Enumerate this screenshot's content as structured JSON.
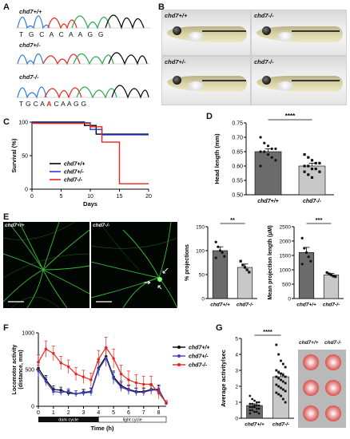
{
  "panels": {
    "A": {
      "letter": "A",
      "genotypes": [
        "chd7+/+",
        "chd7+/-",
        "chd7-/-"
      ],
      "seq_top": [
        "T",
        "G",
        "C",
        "A",
        "C",
        "A",
        "A",
        "G",
        "G"
      ],
      "seq_bottom_pre": "T G C A ",
      "seq_bottom_mut": "A",
      "seq_bottom_post": " C A A G G"
    },
    "B": {
      "letter": "B",
      "labels": [
        "chd7+/+",
        "chd7-/-",
        "chd7+/-",
        "chd7-/-"
      ]
    },
    "C": {
      "letter": "C"
    },
    "D": {
      "letter": "D"
    },
    "E": {
      "letter": "E",
      "image_labels": [
        "chd7+/+",
        "chd7-/-"
      ]
    },
    "F": {
      "letter": "F",
      "dark_label": "dark cycle",
      "light_label": "light cycle"
    },
    "G": {
      "letter": "G",
      "well_labels": [
        "chd7+/+",
        "chd7-/-"
      ]
    }
  },
  "chart_data": [
    {
      "id": "C",
      "type": "line",
      "ylabel": "Survival (%)",
      "xlabel": "Days",
      "xlim": [
        0,
        20
      ],
      "ylim": [
        0,
        100
      ],
      "xticks": [
        "0",
        "5",
        "10",
        "15",
        "20"
      ],
      "yticks": [
        "0",
        "50",
        "100"
      ],
      "series": [
        {
          "name": "chd7+/+",
          "color": "#000000",
          "steps": [
            [
              0,
              100
            ],
            [
              9,
              100
            ],
            [
              9,
              95
            ],
            [
              11,
              95
            ],
            [
              11,
              82
            ],
            [
              20,
              82
            ]
          ]
        },
        {
          "name": "chd7+/-",
          "color": "#1f3fd6",
          "steps": [
            [
              0,
              100
            ],
            [
              10,
              100
            ],
            [
              10,
              90
            ],
            [
              12,
              90
            ],
            [
              12,
              82
            ],
            [
              20,
              82
            ]
          ]
        },
        {
          "name": "chd7-/-",
          "color": "#e8241c",
          "steps": [
            [
              0,
              100
            ],
            [
              10,
              100
            ],
            [
              10,
              95
            ],
            [
              12,
              95
            ],
            [
              12,
              72
            ],
            [
              15,
              72
            ],
            [
              15,
              10
            ],
            [
              20,
              10
            ]
          ]
        }
      ]
    },
    {
      "id": "D",
      "type": "bar",
      "ylabel": "Head length (mm)",
      "categories": [
        "chd7+/+",
        "chd7-/-"
      ],
      "values": [
        0.65,
        0.6
      ],
      "errors": [
        0.01,
        0.01
      ],
      "colors": [
        "#6b6b6b",
        "#c8c8c8"
      ],
      "ylim": [
        0.5,
        0.75
      ],
      "yticks": [
        "0.50",
        "0.55",
        "0.60",
        "0.65",
        "0.70",
        "0.75"
      ],
      "significance": "****",
      "points": [
        [
          0.7,
          0.68,
          0.67,
          0.66,
          0.66,
          0.65,
          0.65,
          0.64,
          0.63,
          0.62,
          0.6
        ],
        [
          0.64,
          0.63,
          0.62,
          0.61,
          0.61,
          0.6,
          0.6,
          0.59,
          0.59,
          0.58,
          0.58,
          0.57,
          0.56
        ]
      ]
    },
    {
      "id": "E1",
      "type": "bar",
      "ylabel": "% projections",
      "categories": [
        "chd7+/+",
        "chd7-/-"
      ],
      "values": [
        100,
        65
      ],
      "errors": [
        8,
        7
      ],
      "colors": [
        "#6b6b6b",
        "#c8c8c8"
      ],
      "ylim": [
        0,
        150
      ],
      "yticks": [
        "0",
        "50",
        "100",
        "150"
      ],
      "significance": "**",
      "points": [
        [
          118,
          108,
          100,
          96,
          88,
          85
        ],
        [
          78,
          70,
          65,
          60,
          55
        ]
      ]
    },
    {
      "id": "E2",
      "type": "bar",
      "ylabel": "Mean projection length (μM)",
      "categories": [
        "chd7+/+",
        "chd7-/-"
      ],
      "values": [
        1600,
        820
      ],
      "errors": [
        180,
        50
      ],
      "colors": [
        "#6b6b6b",
        "#c8c8c8"
      ],
      "ylim": [
        0,
        2500
      ],
      "yticks": [
        "0",
        "500",
        "1000",
        "1500",
        "2000",
        "2500"
      ],
      "significance": "***",
      "points": [
        [
          2100,
          1750,
          1600,
          1450,
          1300,
          1200
        ],
        [
          900,
          860,
          820,
          780,
          760
        ]
      ]
    },
    {
      "id": "F",
      "type": "line",
      "ylabel": "Locomotor activity (distance, mm)",
      "xlabel": "Time (h)",
      "x": [
        0,
        0.5,
        1,
        1.5,
        2,
        2.5,
        3,
        3.5,
        4,
        4.5,
        5,
        5.5,
        6,
        6.5,
        7,
        7.5,
        8,
        8.5
      ],
      "xticks": [
        "0",
        "1",
        "2",
        "3",
        "4",
        "5",
        "6",
        "7",
        "8"
      ],
      "yticks": [
        "0",
        "500",
        "1000"
      ],
      "ylim": [
        0,
        1000
      ],
      "series": [
        {
          "name": "chd7+/+",
          "color": "#000000",
          "values": [
            520,
            360,
            230,
            220,
            180,
            170,
            190,
            200,
            520,
            680,
            400,
            280,
            230,
            200,
            200,
            230,
            230,
            40
          ]
        },
        {
          "name": "chd7+/-",
          "color": "#3f3fc8",
          "values": [
            480,
            340,
            200,
            190,
            200,
            170,
            180,
            190,
            500,
            660,
            380,
            260,
            220,
            190,
            190,
            220,
            220,
            40
          ]
        },
        {
          "name": "chd7-/-",
          "color": "#e8241c",
          "values": [
            600,
            780,
            720,
            590,
            540,
            440,
            400,
            360,
            640,
            800,
            650,
            440,
            360,
            320,
            300,
            300,
            180,
            50
          ]
        }
      ],
      "errors": [
        [
          80,
          60,
          50,
          40,
          40,
          40,
          40,
          50,
          90,
          120,
          80,
          60,
          60,
          50,
          50,
          60,
          60,
          20
        ],
        [
          80,
          60,
          50,
          40,
          40,
          40,
          40,
          50,
          90,
          120,
          80,
          60,
          60,
          50,
          50,
          60,
          60,
          20
        ],
        [
          100,
          110,
          100,
          90,
          90,
          90,
          90,
          90,
          120,
          140,
          130,
          120,
          120,
          110,
          110,
          110,
          80,
          30
        ]
      ],
      "dark_cycle": [
        0,
        4
      ],
      "light_cycle": [
        4,
        8.5
      ]
    },
    {
      "id": "G",
      "type": "bar",
      "ylabel": "Average activity/sec",
      "categories": [
        "chd7+/+",
        "chd7-/-"
      ],
      "values": [
        0.8,
        2.6
      ],
      "errors": [
        0.1,
        0.2
      ],
      "colors": [
        "#6b6b6b",
        "#c8c8c8"
      ],
      "ylim": [
        0,
        5
      ],
      "yticks": [
        "0",
        "1",
        "2",
        "3",
        "4",
        "5"
      ],
      "significance": "****",
      "points": [
        [
          1.4,
          1.2,
          1.1,
          1.0,
          1.0,
          0.9,
          0.9,
          0.8,
          0.8,
          0.8,
          0.7,
          0.7,
          0.7,
          0.6,
          0.6,
          0.5,
          0.5,
          0.4,
          0.4,
          0.3,
          0.3
        ],
        [
          4.6,
          4.0,
          3.6,
          3.4,
          3.2,
          3.0,
          2.9,
          2.8,
          2.7,
          2.6,
          2.6,
          2.5,
          2.4,
          2.3,
          2.2,
          2.1,
          2.0,
          1.9,
          1.8,
          1.7,
          1.6,
          1.5,
          1.4,
          1.2,
          1.0
        ]
      ]
    }
  ]
}
